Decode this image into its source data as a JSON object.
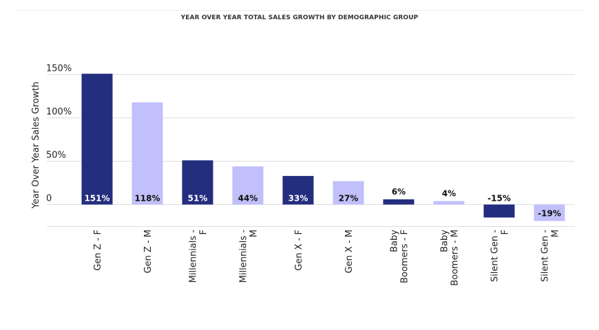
{
  "chart_data": {
    "type": "bar",
    "title": "YEAR OVER YEAR TOTAL SALES GROWTH BY DEMOGRAPHIC GROUP",
    "ylabel": "Year Over Year Sales Growth",
    "xlabel": "",
    "ylim": [
      -25,
      150
    ],
    "yticks": [
      {
        "value": 150,
        "label": "150%"
      },
      {
        "value": 100,
        "label": "100%"
      },
      {
        "value": 50,
        "label": "50%"
      },
      {
        "value": 0,
        "label": "0"
      }
    ],
    "grid": true,
    "categories": [
      [
        "Gen Z - F"
      ],
      [
        "Gen Z - M"
      ],
      [
        "Millennials -",
        "F"
      ],
      [
        "Millennials -",
        "M"
      ],
      [
        "Gen X - F"
      ],
      [
        "Gen X - M"
      ],
      [
        "Baby",
        "Boomers - F"
      ],
      [
        "Baby",
        "Boomers - M"
      ],
      [
        "Silent Gen -",
        "F"
      ],
      [
        "Silent Gen -",
        "M"
      ]
    ],
    "values": [
      151,
      118,
      51,
      44,
      33,
      27,
      6,
      4,
      -15,
      -19
    ],
    "data_labels": [
      "151%",
      "118%",
      "51%",
      "44%",
      "33%",
      "27%",
      "6%",
      "4%",
      "-15%",
      "-19%"
    ],
    "colors": {
      "female": "#232e7e",
      "male": "#c1c0fb",
      "grid": "#dddddd",
      "label_on_dark": "#ffffff",
      "label_default": "#111111"
    }
  }
}
